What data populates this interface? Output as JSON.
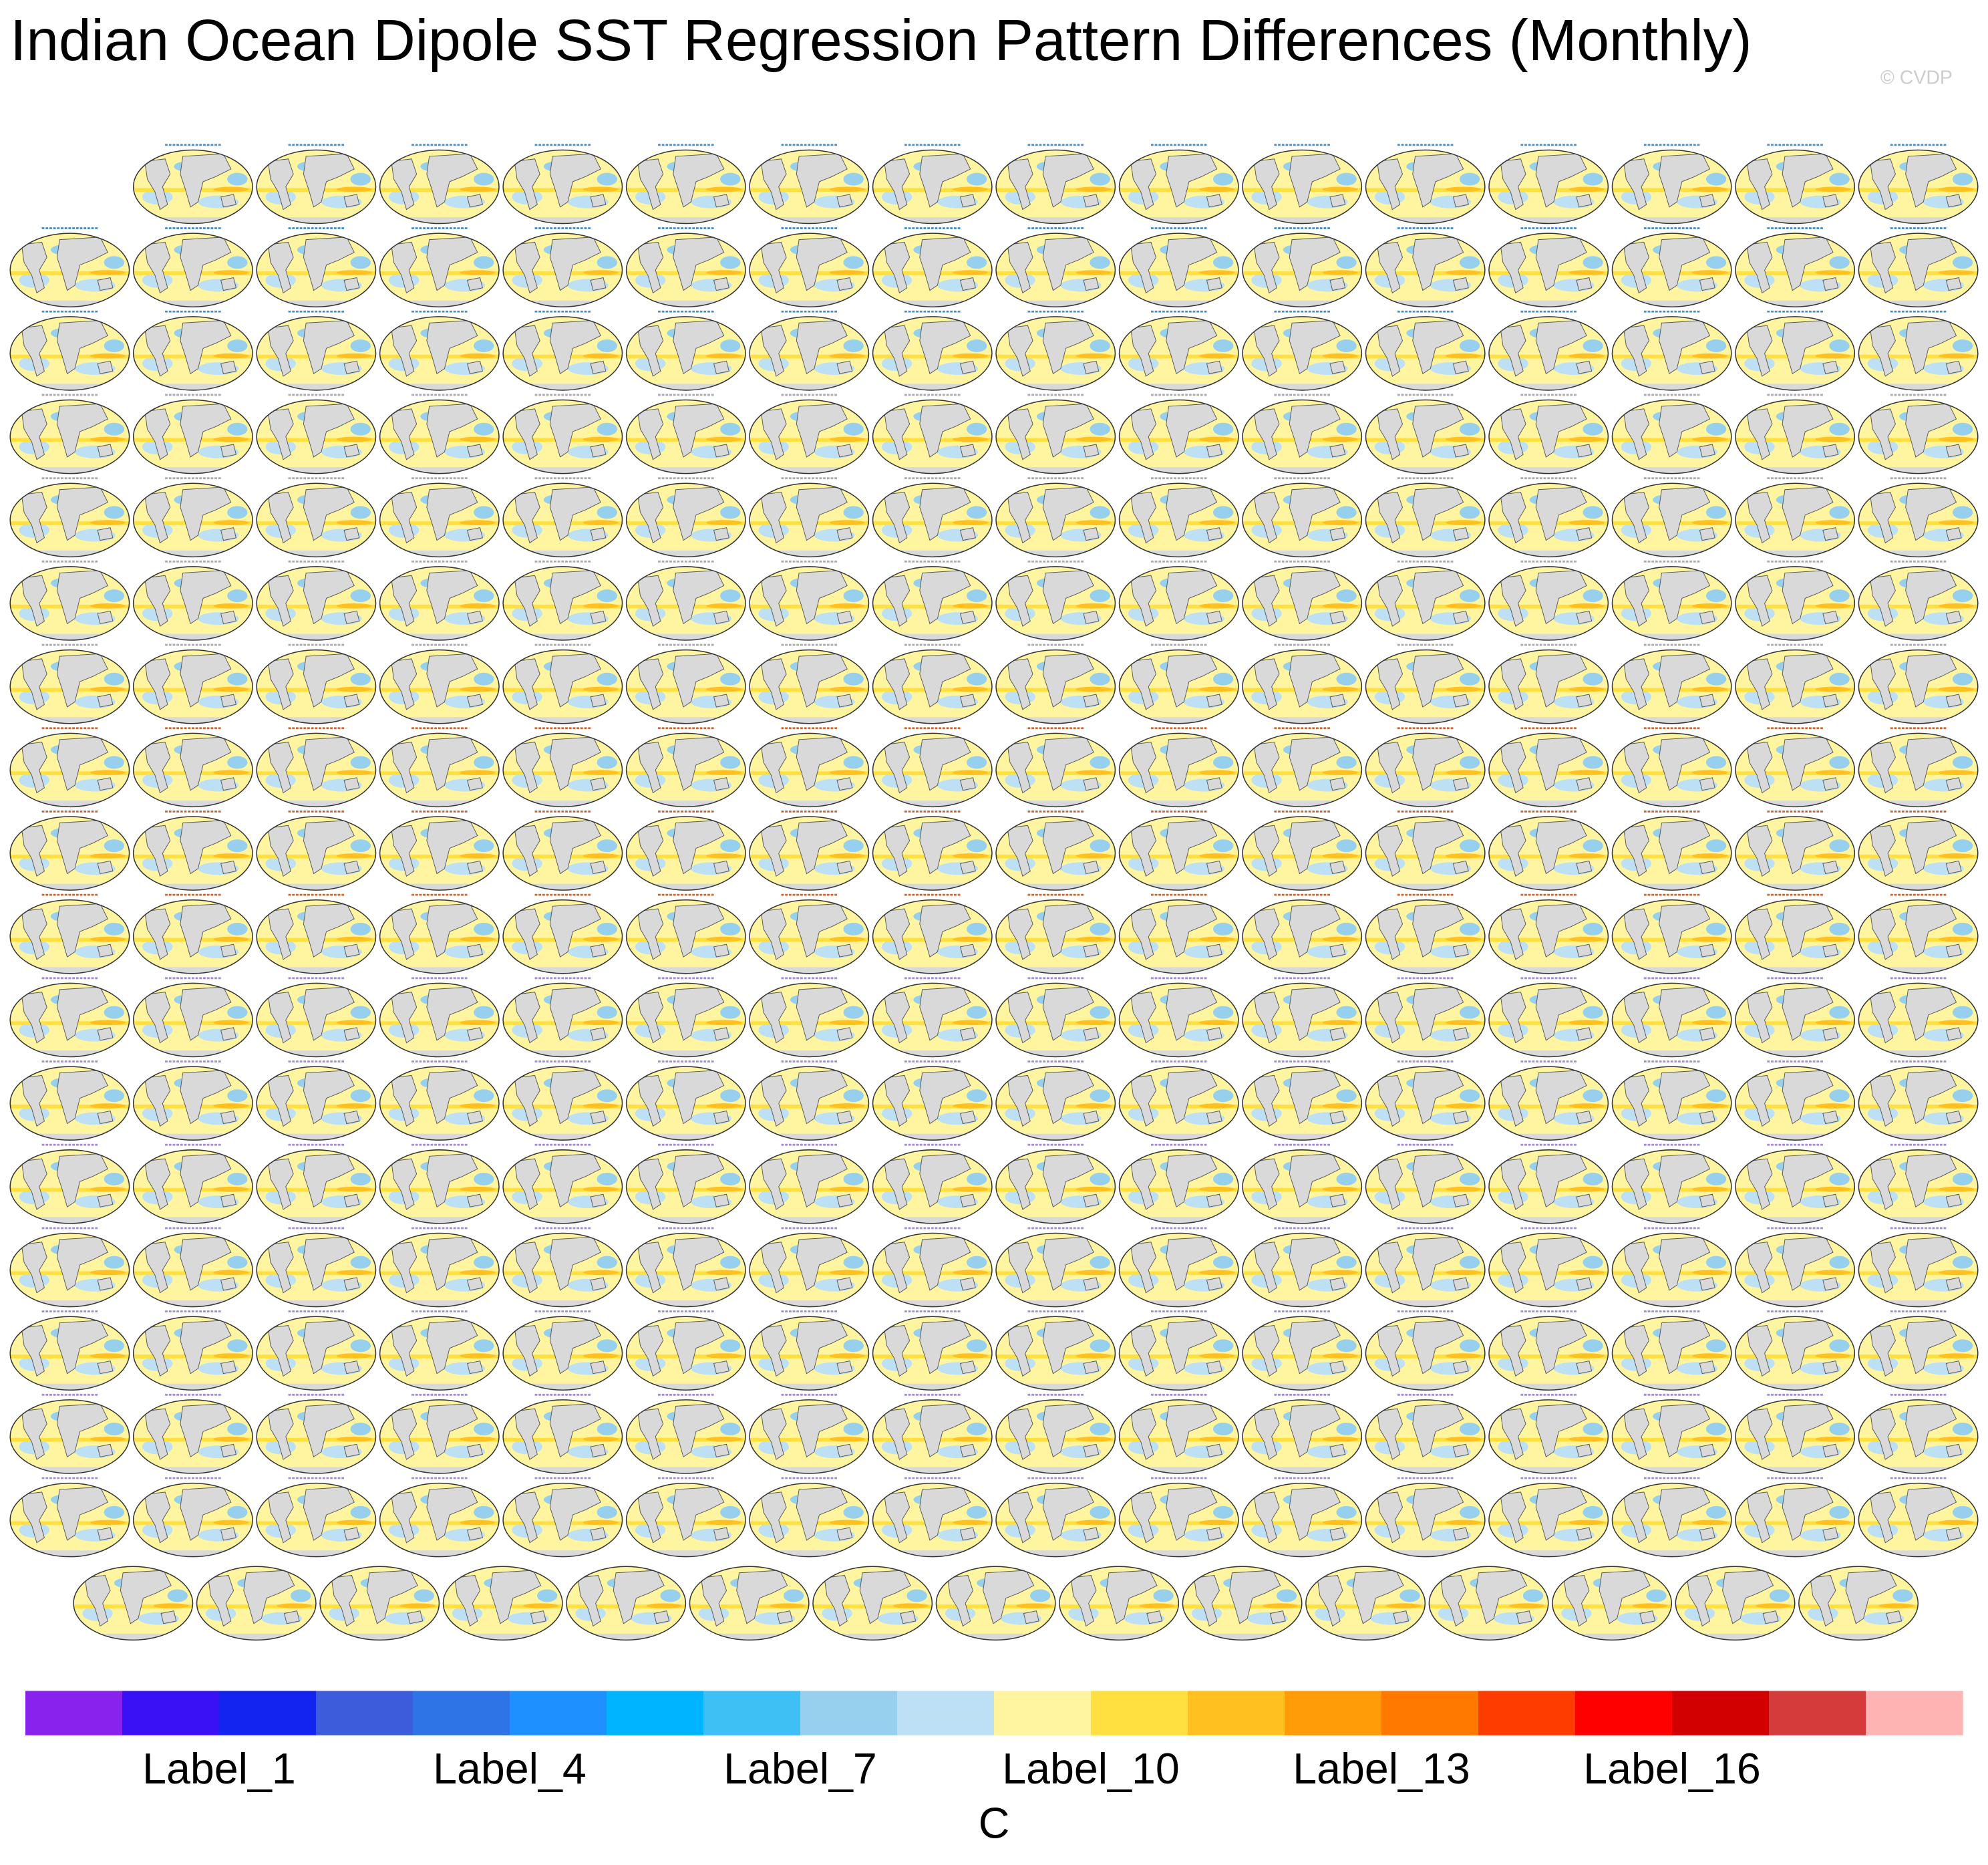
{
  "chart_data": {
    "type": "panel-grid",
    "title": "Indian Ocean Dipole SST Regression Pattern Differences (Monthly)",
    "watermark": "© CVDP",
    "colorbar": {
      "colors": [
        "#8a22ee",
        "#3a10f5",
        "#1424f0",
        "#3c5cdc",
        "#2e74e6",
        "#1e90ff",
        "#00b4ff",
        "#3ec0f5",
        "#96d0ee",
        "#bde0f5",
        "#fff5a0",
        "#ffe040",
        "#ffc020",
        "#ff9c08",
        "#ff7800",
        "#ff3c00",
        "#ff0000",
        "#d20000",
        "#d43c3c",
        "#ffb4b4"
      ],
      "labels": [
        "Label_1",
        "Label_4",
        "Label_7",
        "Label_10",
        "Label_13",
        "Label_16"
      ],
      "units": "C"
    }
  }
}
